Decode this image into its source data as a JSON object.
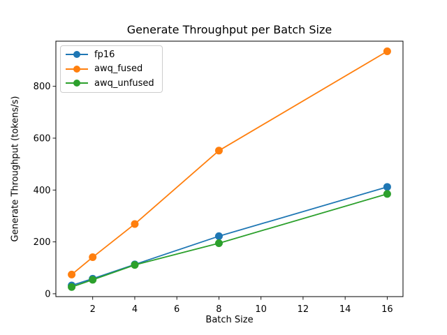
{
  "chart_data": {
    "type": "line",
    "title": "Generate Throughput per Batch Size",
    "xlabel": "Batch Size",
    "ylabel": "Generate Throughput (tokens/s)",
    "x": [
      1,
      2,
      4,
      8,
      16
    ],
    "xticks": [
      2,
      4,
      6,
      8,
      10,
      12,
      14,
      16
    ],
    "yticks": [
      0,
      200,
      400,
      600,
      800
    ],
    "xlim": [
      0.25,
      16.75
    ],
    "ylim": [
      -11,
      974
    ],
    "grid": false,
    "legend_position": "upper left",
    "marker": "o",
    "series": [
      {
        "name": "fp16",
        "color": "#1f77b4",
        "values": [
          32,
          58,
          113,
          222,
          412
        ]
      },
      {
        "name": "awq_fused",
        "color": "#ff7f0e",
        "values": [
          74,
          141,
          269,
          552,
          935
        ]
      },
      {
        "name": "awq_unfused",
        "color": "#2ca02c",
        "values": [
          26,
          54,
          111,
          195,
          385
        ]
      }
    ]
  }
}
